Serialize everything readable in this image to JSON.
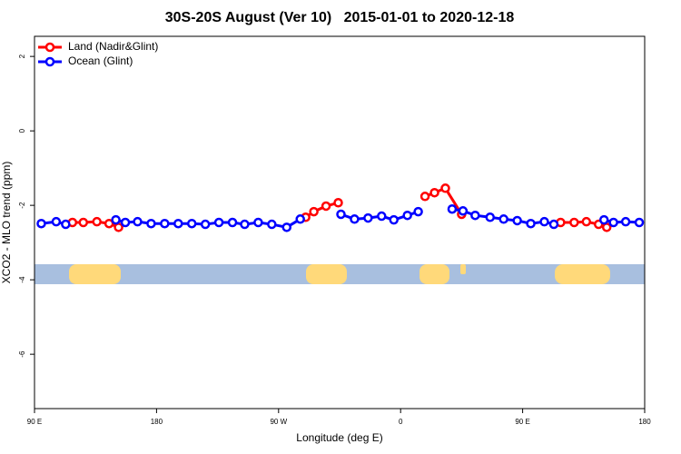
{
  "chart_data": {
    "type": "line",
    "title": "30S-20S August (Ver 10)   2015-01-01 to 2020-12-18",
    "xlabel": "Longitude (deg E)",
    "ylabel": "XCO2 - MLO trend (ppm)",
    "xlim": [
      90,
      540
    ],
    "ylim": [
      -7.46,
      2.54
    ],
    "xticks": [
      {
        "value": 90,
        "label": "90 E"
      },
      180,
      {
        "value": 270,
        "label": "90 W"
      },
      {
        "value": 360,
        "label": "0"
      },
      {
        "value": 450,
        "label": "90 E"
      },
      {
        "value": 540,
        "label": "180"
      }
    ],
    "yticks": [
      -6,
      -4,
      -2,
      0,
      2
    ],
    "legend": "top-left",
    "series": [
      {
        "name": "Land (Nadir&Glint)",
        "color": "#ff0000",
        "x": [
          118,
          126,
          136,
          145,
          152,
          null,
          290,
          296,
          305,
          314,
          null,
          378,
          385,
          393,
          405,
          null,
          478,
          488,
          497,
          506,
          512
        ],
        "values": [
          -2.46,
          -2.46,
          -2.44,
          -2.49,
          -2.59,
          null,
          -2.32,
          -2.17,
          -2.02,
          -1.93,
          null,
          -1.76,
          -1.66,
          -1.54,
          -2.24,
          null,
          -2.46,
          -2.46,
          -2.44,
          -2.51,
          -2.59
        ]
      },
      {
        "name": "Ocean (Glint)",
        "color": "#0000ff",
        "x": [
          95,
          106,
          113,
          null,
          150,
          157,
          166,
          176,
          186,
          196,
          206,
          216,
          226,
          236,
          245,
          255,
          265,
          276,
          286,
          null,
          316,
          326,
          336,
          346,
          355,
          365,
          373,
          null,
          398,
          406,
          415,
          426,
          436,
          446,
          456,
          466,
          473,
          null,
          510,
          517,
          526,
          536
        ],
        "values": [
          -2.49,
          -2.44,
          -2.51,
          null,
          -2.39,
          -2.46,
          -2.44,
          -2.49,
          -2.49,
          -2.49,
          -2.49,
          -2.51,
          -2.46,
          -2.46,
          -2.51,
          -2.46,
          -2.51,
          -2.59,
          -2.37,
          null,
          -2.24,
          -2.37,
          -2.34,
          -2.29,
          -2.39,
          -2.27,
          -2.17,
          null,
          -2.1,
          -2.15,
          -2.27,
          -2.32,
          -2.37,
          -2.41,
          -2.49,
          -2.44,
          -2.51,
          null,
          -2.39,
          -2.46,
          -2.44,
          -2.46
        ]
      }
    ]
  }
}
